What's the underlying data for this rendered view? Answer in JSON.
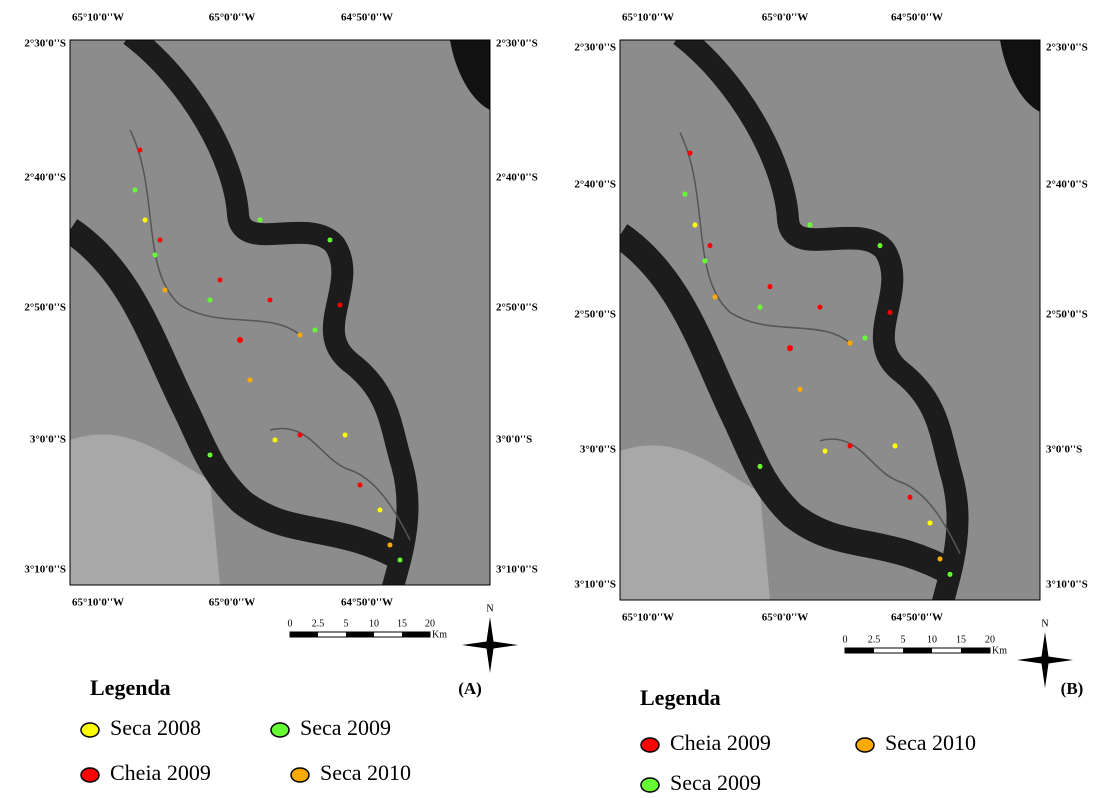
{
  "panels": [
    {
      "label": "(A)",
      "top_longitudes": [
        "65°10'0''W",
        "65°0'0''W",
        "64°50'0''W"
      ],
      "bottom_longitudes": [
        "65°10'0''W",
        "65°0'0''W",
        "64°50'0''W"
      ],
      "left_latitudes": [
        "2°30'0''S",
        "2°40'0''S",
        "2°50'0''S",
        "3°0'0''S",
        "3°10'0''S"
      ],
      "right_latitudes": [
        "2°30'0''S",
        "2°40'0''S",
        "2°50'0''S",
        "3°0'0''S",
        "3°10'0''S"
      ],
      "scale_labels": [
        "0",
        "2.5",
        "5",
        "10",
        "15",
        "20"
      ],
      "scale_unit": "Km",
      "north": "N",
      "legend_title": "Legenda",
      "legend_items": [
        {
          "name": "Seca 2008",
          "color": "#ffff00"
        },
        {
          "name": "Seca 2009",
          "color": "#66ff33"
        },
        {
          "name": "Cheia 2009",
          "color": "#ff0000"
        },
        {
          "name": "Seca 2010",
          "color": "#ffaa00"
        }
      ]
    },
    {
      "label": "(B)",
      "top_longitudes": [
        "65°10'0''W",
        "65°0'0''W",
        "64°50'0''W"
      ],
      "bottom_longitudes": [
        "65°10'0''W",
        "65°0'0''W",
        "64°50'0''W"
      ],
      "left_latitudes": [
        "2°30'0''S",
        "2°40'0''S",
        "2°50'0''S",
        "3°0'0''S",
        "3°10'0''S"
      ],
      "right_latitudes": [
        "2°30'0''S",
        "2°40'0''S",
        "2°50'0''S",
        "3°0'0''S",
        "3°10'0''S"
      ],
      "scale_labels": [
        "0",
        "2.5",
        "5",
        "10",
        "15",
        "20"
      ],
      "scale_unit": "Km",
      "north": "N",
      "legend_title": "Legenda",
      "legend_items": [
        {
          "name": "Cheia 2009",
          "color": "#ff0000"
        },
        {
          "name": "Seca 2010",
          "color": "#ffaa00"
        },
        {
          "name": "Seca 2009",
          "color": "#66ff33"
        }
      ]
    }
  ]
}
